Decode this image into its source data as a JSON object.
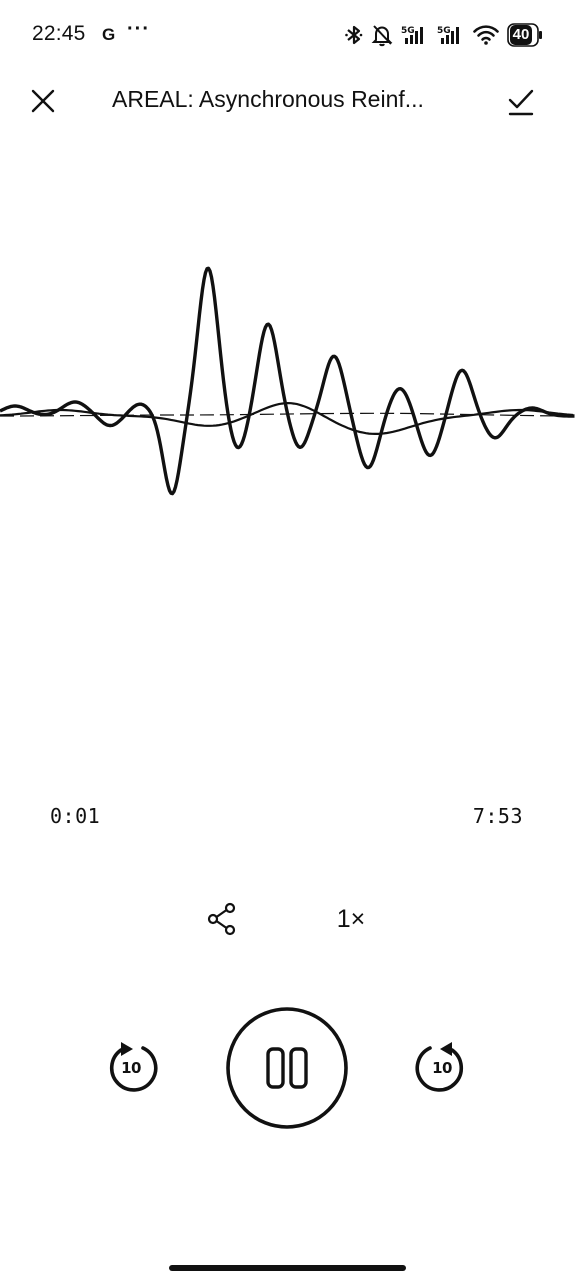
{
  "status_bar": {
    "time": "22:45",
    "g_badge": "G",
    "more": "···",
    "battery_level": "40",
    "icons": [
      "bluetooth-icon",
      "bell-off-icon",
      "signal-1-icon",
      "signal-2-icon",
      "wifi-icon",
      "battery-icon"
    ]
  },
  "header": {
    "title": "AREAL: Asynchronous Reinf...",
    "close_icon": "close-icon",
    "done_icon": "check-icon"
  },
  "player": {
    "current_time": "0:01",
    "total_time": "7:53",
    "progress_fraction": 0.002,
    "speed_label": "1×",
    "rewind_label": "10",
    "forward_label": "10",
    "state": "playing"
  }
}
